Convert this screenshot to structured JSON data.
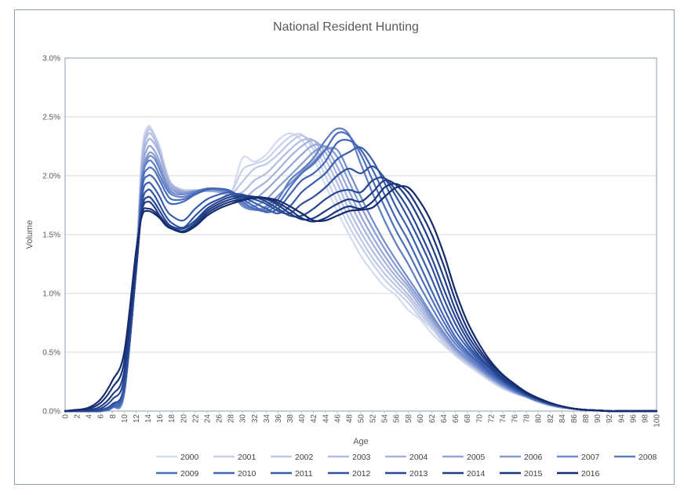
{
  "chart_data": {
    "type": "line",
    "title": "National Resident Hunting",
    "xlabel": "Age",
    "ylabel": "Volume",
    "xlim": [
      0,
      100
    ],
    "ylim": [
      0,
      3.0
    ],
    "x_ticks": [
      "0",
      "2",
      "4",
      "6",
      "8",
      "10",
      "12",
      "14",
      "16",
      "18",
      "20",
      "22",
      "24",
      "26",
      "28",
      "30",
      "32",
      "34",
      "36",
      "38",
      "40",
      "42",
      "44",
      "46",
      "48",
      "50",
      "52",
      "54",
      "56",
      "58",
      "60",
      "62",
      "64",
      "66",
      "68",
      "70",
      "72",
      "74",
      "76",
      "78",
      "80",
      "82",
      "84",
      "86",
      "88",
      "90",
      "92",
      "94",
      "96",
      "98",
      "100"
    ],
    "y_ticks": [
      "0.0%",
      "0.5%",
      "1.0%",
      "1.5%",
      "2.0%",
      "2.5%",
      "3.0%"
    ],
    "grid": "horizontal",
    "legend_position": "bottom",
    "x": [
      0,
      2,
      4,
      6,
      8,
      10,
      12,
      13,
      14,
      15,
      16,
      17,
      18,
      20,
      22,
      24,
      26,
      28,
      30,
      32,
      34,
      36,
      38,
      40,
      42,
      44,
      46,
      48,
      50,
      52,
      54,
      56,
      58,
      60,
      62,
      64,
      66,
      68,
      70,
      72,
      74,
      76,
      78,
      80,
      82,
      84,
      86,
      88,
      90,
      92,
      94,
      96,
      98,
      100
    ],
    "series": [
      {
        "name": "2000",
        "color": "#d4dbee",
        "values": [
          0.0,
          0.0,
          0.0,
          0.0,
          0.03,
          0.15,
          1.3,
          2.2,
          2.42,
          2.35,
          2.25,
          2.05,
          1.92,
          1.88,
          1.88,
          1.87,
          1.87,
          1.85,
          2.15,
          2.12,
          2.18,
          2.3,
          2.36,
          2.3,
          2.15,
          1.92,
          1.7,
          1.5,
          1.32,
          1.18,
          1.06,
          0.98,
          0.86,
          0.78,
          0.66,
          0.56,
          0.47,
          0.39,
          0.32,
          0.25,
          0.19,
          0.15,
          0.12,
          0.08,
          0.05,
          0.03,
          0.02,
          0.01,
          0.005,
          0.0,
          0.0,
          0.0,
          0.0,
          0.0
        ]
      },
      {
        "name": "2001",
        "color": "#c9d1ea",
        "values": [
          0.0,
          0.0,
          0.0,
          0.0,
          0.03,
          0.15,
          1.3,
          2.18,
          2.4,
          2.36,
          2.22,
          2.05,
          1.93,
          1.88,
          1.88,
          1.87,
          1.87,
          1.85,
          2.05,
          2.1,
          2.14,
          2.24,
          2.33,
          2.35,
          2.22,
          2.0,
          1.78,
          1.57,
          1.4,
          1.25,
          1.12,
          1.02,
          0.92,
          0.8,
          0.7,
          0.58,
          0.48,
          0.4,
          0.33,
          0.26,
          0.2,
          0.15,
          0.12,
          0.08,
          0.05,
          0.03,
          0.02,
          0.01,
          0.005,
          0.0,
          0.0,
          0.0,
          0.0,
          0.0
        ]
      },
      {
        "name": "2002",
        "color": "#bdc7e6",
        "values": [
          0.0,
          0.0,
          0.0,
          0.0,
          0.03,
          0.15,
          1.3,
          2.15,
          2.38,
          2.35,
          2.22,
          2.05,
          1.93,
          1.87,
          1.87,
          1.87,
          1.86,
          1.84,
          1.95,
          2.06,
          2.1,
          2.18,
          2.28,
          2.34,
          2.26,
          2.07,
          1.86,
          1.64,
          1.46,
          1.3,
          1.17,
          1.06,
          0.96,
          0.83,
          0.72,
          0.6,
          0.49,
          0.41,
          0.34,
          0.26,
          0.2,
          0.15,
          0.12,
          0.08,
          0.05,
          0.03,
          0.02,
          0.01,
          0.005,
          0.0,
          0.0,
          0.0,
          0.0,
          0.0
        ]
      },
      {
        "name": "2003",
        "color": "#b1bde1",
        "values": [
          0.0,
          0.0,
          0.0,
          0.0,
          0.03,
          0.15,
          1.28,
          2.12,
          2.35,
          2.32,
          2.2,
          2.05,
          1.93,
          1.87,
          1.87,
          1.87,
          1.86,
          1.84,
          1.86,
          1.96,
          2.02,
          2.12,
          2.22,
          2.3,
          2.3,
          2.14,
          1.94,
          1.71,
          1.52,
          1.36,
          1.22,
          1.1,
          0.99,
          0.86,
          0.74,
          0.62,
          0.5,
          0.42,
          0.34,
          0.27,
          0.21,
          0.16,
          0.12,
          0.08,
          0.05,
          0.03,
          0.02,
          0.01,
          0.005,
          0.0,
          0.0,
          0.0,
          0.0,
          0.0
        ]
      },
      {
        "name": "2004",
        "color": "#a4b2dc",
        "values": [
          0.0,
          0.0,
          0.0,
          0.0,
          0.03,
          0.15,
          1.25,
          2.08,
          2.3,
          2.28,
          2.18,
          2.02,
          1.92,
          1.87,
          1.87,
          1.87,
          1.86,
          1.84,
          1.8,
          1.88,
          1.95,
          2.05,
          2.16,
          2.25,
          2.3,
          2.2,
          2.01,
          1.79,
          1.59,
          1.42,
          1.27,
          1.14,
          1.03,
          0.89,
          0.76,
          0.63,
          0.51,
          0.42,
          0.35,
          0.27,
          0.21,
          0.16,
          0.12,
          0.08,
          0.05,
          0.03,
          0.02,
          0.01,
          0.005,
          0.0,
          0.0,
          0.0,
          0.0,
          0.0
        ]
      },
      {
        "name": "2005",
        "color": "#95a6d6",
        "values": [
          0.0,
          0.0,
          0.0,
          0.0,
          0.03,
          0.15,
          1.23,
          2.02,
          2.24,
          2.22,
          2.12,
          1.98,
          1.9,
          1.86,
          1.87,
          1.88,
          1.87,
          1.85,
          1.77,
          1.8,
          1.88,
          1.98,
          2.08,
          2.18,
          2.26,
          2.24,
          2.08,
          1.87,
          1.66,
          1.48,
          1.32,
          1.18,
          1.06,
          0.92,
          0.78,
          0.64,
          0.52,
          0.43,
          0.35,
          0.28,
          0.21,
          0.16,
          0.12,
          0.08,
          0.05,
          0.03,
          0.02,
          0.01,
          0.005,
          0.0,
          0.0,
          0.0,
          0.0,
          0.0
        ]
      },
      {
        "name": "2006",
        "color": "#849ad0",
        "values": [
          0.0,
          0.0,
          0.0,
          0.0,
          0.03,
          0.15,
          1.22,
          1.98,
          2.18,
          2.18,
          2.08,
          1.95,
          1.88,
          1.85,
          1.87,
          1.88,
          1.87,
          1.85,
          1.75,
          1.74,
          1.8,
          1.9,
          2.0,
          2.1,
          2.2,
          2.25,
          2.16,
          1.95,
          1.74,
          1.55,
          1.38,
          1.23,
          1.09,
          0.95,
          0.8,
          0.66,
          0.53,
          0.44,
          0.36,
          0.28,
          0.22,
          0.16,
          0.12,
          0.08,
          0.05,
          0.03,
          0.02,
          0.01,
          0.005,
          0.0,
          0.0,
          0.0,
          0.0,
          0.0
        ]
      },
      {
        "name": "2007",
        "color": "#728cca",
        "values": [
          0.0,
          0.0,
          0.0,
          0.0,
          0.03,
          0.16,
          1.2,
          1.95,
          2.15,
          2.15,
          2.05,
          1.93,
          1.86,
          1.84,
          1.87,
          1.89,
          1.88,
          1.85,
          1.74,
          1.71,
          1.74,
          1.83,
          1.93,
          2.03,
          2.12,
          2.22,
          2.22,
          2.03,
          1.82,
          1.62,
          1.44,
          1.28,
          1.13,
          0.98,
          0.82,
          0.67,
          0.54,
          0.45,
          0.37,
          0.29,
          0.22,
          0.17,
          0.12,
          0.08,
          0.05,
          0.03,
          0.02,
          0.01,
          0.005,
          0.0,
          0.0,
          0.0,
          0.0,
          0.0
        ]
      },
      {
        "name": "2008",
        "color": "#5e7dc4",
        "values": [
          0.0,
          0.0,
          0.0,
          0.0,
          0.03,
          0.16,
          1.22,
          1.95,
          2.12,
          2.1,
          2.0,
          1.9,
          1.84,
          1.82,
          1.86,
          1.89,
          1.88,
          1.86,
          1.76,
          1.71,
          1.72,
          1.8,
          1.96,
          2.05,
          2.15,
          2.3,
          2.4,
          2.35,
          2.1,
          1.85,
          1.62,
          1.42,
          1.25,
          1.06,
          0.88,
          0.71,
          0.57,
          0.47,
          0.38,
          0.3,
          0.23,
          0.17,
          0.13,
          0.09,
          0.06,
          0.04,
          0.02,
          0.01,
          0.005,
          0.0,
          0.0,
          0.0,
          0.0,
          0.0
        ]
      },
      {
        "name": "2009",
        "color": "#4d6fbd",
        "values": [
          0.0,
          0.0,
          0.0,
          0.0,
          0.03,
          0.17,
          1.2,
          1.92,
          2.06,
          2.05,
          1.96,
          1.86,
          1.8,
          1.8,
          1.85,
          1.89,
          1.89,
          1.87,
          1.78,
          1.72,
          1.7,
          1.76,
          1.9,
          2.02,
          2.1,
          2.22,
          2.36,
          2.34,
          2.18,
          1.96,
          1.74,
          1.53,
          1.35,
          1.15,
          0.95,
          0.76,
          0.6,
          0.49,
          0.4,
          0.31,
          0.24,
          0.18,
          0.13,
          0.09,
          0.06,
          0.04,
          0.02,
          0.01,
          0.005,
          0.0,
          0.0,
          0.0,
          0.0,
          0.0
        ]
      },
      {
        "name": "2010",
        "color": "#4266b6",
        "values": [
          0.0,
          0.0,
          0.0,
          0.0,
          0.04,
          0.18,
          1.2,
          1.88,
          2.0,
          1.98,
          1.9,
          1.8,
          1.76,
          1.78,
          1.84,
          1.88,
          1.89,
          1.87,
          1.8,
          1.74,
          1.69,
          1.72,
          1.84,
          1.96,
          2.02,
          2.12,
          2.28,
          2.3,
          2.22,
          2.05,
          1.84,
          1.63,
          1.45,
          1.24,
          1.02,
          0.81,
          0.63,
          0.51,
          0.41,
          0.32,
          0.25,
          0.18,
          0.13,
          0.09,
          0.06,
          0.04,
          0.02,
          0.01,
          0.005,
          0.0,
          0.0,
          0.0,
          0.0,
          0.0
        ]
      },
      {
        "name": "2011",
        "color": "#395cab",
        "values": [
          0.0,
          0.0,
          0.0,
          0.0,
          0.05,
          0.2,
          1.18,
          1.82,
          1.94,
          1.9,
          1.82,
          1.72,
          1.66,
          1.62,
          1.72,
          1.8,
          1.84,
          1.86,
          1.82,
          1.77,
          1.72,
          1.68,
          1.74,
          1.86,
          1.94,
          2.02,
          2.14,
          2.2,
          2.24,
          2.13,
          1.94,
          1.73,
          1.55,
          1.34,
          1.12,
          0.88,
          0.68,
          0.54,
          0.43,
          0.33,
          0.25,
          0.19,
          0.14,
          0.1,
          0.06,
          0.04,
          0.02,
          0.01,
          0.005,
          0.0,
          0.0,
          0.0,
          0.0,
          0.0
        ]
      },
      {
        "name": "2012",
        "color": "#30519e",
        "values": [
          0.0,
          0.0,
          0.0,
          0.01,
          0.06,
          0.22,
          1.18,
          1.76,
          1.88,
          1.84,
          1.75,
          1.66,
          1.6,
          1.56,
          1.66,
          1.75,
          1.8,
          1.84,
          1.84,
          1.8,
          1.76,
          1.7,
          1.68,
          1.76,
          1.82,
          1.9,
          2.0,
          2.06,
          2.02,
          2.08,
          1.98,
          1.82,
          1.64,
          1.44,
          1.22,
          0.96,
          0.74,
          0.57,
          0.45,
          0.35,
          0.26,
          0.2,
          0.14,
          0.1,
          0.06,
          0.04,
          0.02,
          0.01,
          0.005,
          0.0,
          0.0,
          0.0,
          0.0,
          0.0
        ]
      },
      {
        "name": "2013",
        "color": "#284792",
        "values": [
          0.0,
          0.0,
          0.0,
          0.02,
          0.1,
          0.28,
          1.2,
          1.72,
          1.82,
          1.78,
          1.7,
          1.62,
          1.57,
          1.55,
          1.62,
          1.72,
          1.78,
          1.82,
          1.83,
          1.82,
          1.78,
          1.72,
          1.66,
          1.66,
          1.72,
          1.8,
          1.86,
          1.88,
          1.86,
          1.96,
          1.98,
          1.87,
          1.72,
          1.52,
          1.3,
          1.04,
          0.8,
          0.61,
          0.47,
          0.36,
          0.27,
          0.2,
          0.14,
          0.1,
          0.06,
          0.04,
          0.02,
          0.01,
          0.005,
          0.0,
          0.0,
          0.0,
          0.0,
          0.0
        ]
      },
      {
        "name": "2014",
        "color": "#213d85",
        "values": [
          0.0,
          0.01,
          0.01,
          0.04,
          0.14,
          0.34,
          1.24,
          1.7,
          1.78,
          1.74,
          1.66,
          1.6,
          1.56,
          1.53,
          1.6,
          1.7,
          1.76,
          1.8,
          1.82,
          1.82,
          1.8,
          1.75,
          1.68,
          1.63,
          1.64,
          1.7,
          1.76,
          1.8,
          1.78,
          1.86,
          1.96,
          1.92,
          1.8,
          1.62,
          1.4,
          1.14,
          0.86,
          0.65,
          0.5,
          0.38,
          0.28,
          0.21,
          0.15,
          0.1,
          0.07,
          0.04,
          0.02,
          0.01,
          0.005,
          0.0,
          0.0,
          0.0,
          0.0,
          0.0
        ]
      },
      {
        "name": "2015",
        "color": "#1b347a",
        "values": [
          0.0,
          0.01,
          0.02,
          0.07,
          0.2,
          0.42,
          1.3,
          1.68,
          1.72,
          1.7,
          1.65,
          1.58,
          1.55,
          1.52,
          1.58,
          1.68,
          1.74,
          1.78,
          1.8,
          1.82,
          1.81,
          1.77,
          1.71,
          1.64,
          1.61,
          1.64,
          1.7,
          1.74,
          1.72,
          1.78,
          1.9,
          1.93,
          1.86,
          1.7,
          1.5,
          1.24,
          0.94,
          0.7,
          0.53,
          0.4,
          0.3,
          0.22,
          0.15,
          0.11,
          0.07,
          0.04,
          0.02,
          0.01,
          0.005,
          0.0,
          0.0,
          0.0,
          0.0,
          0.0
        ]
      },
      {
        "name": "2016",
        "color": "#142b6c",
        "values": [
          0.0,
          0.01,
          0.03,
          0.1,
          0.26,
          0.5,
          1.36,
          1.66,
          1.7,
          1.68,
          1.64,
          1.58,
          1.55,
          1.52,
          1.57,
          1.66,
          1.72,
          1.76,
          1.79,
          1.81,
          1.81,
          1.79,
          1.74,
          1.68,
          1.62,
          1.62,
          1.66,
          1.7,
          1.71,
          1.73,
          1.82,
          1.9,
          1.9,
          1.78,
          1.6,
          1.34,
          1.02,
          0.76,
          0.57,
          0.42,
          0.31,
          0.23,
          0.16,
          0.11,
          0.07,
          0.04,
          0.02,
          0.01,
          0.005,
          0.0,
          0.0,
          0.0,
          0.0,
          0.0
        ]
      }
    ]
  }
}
